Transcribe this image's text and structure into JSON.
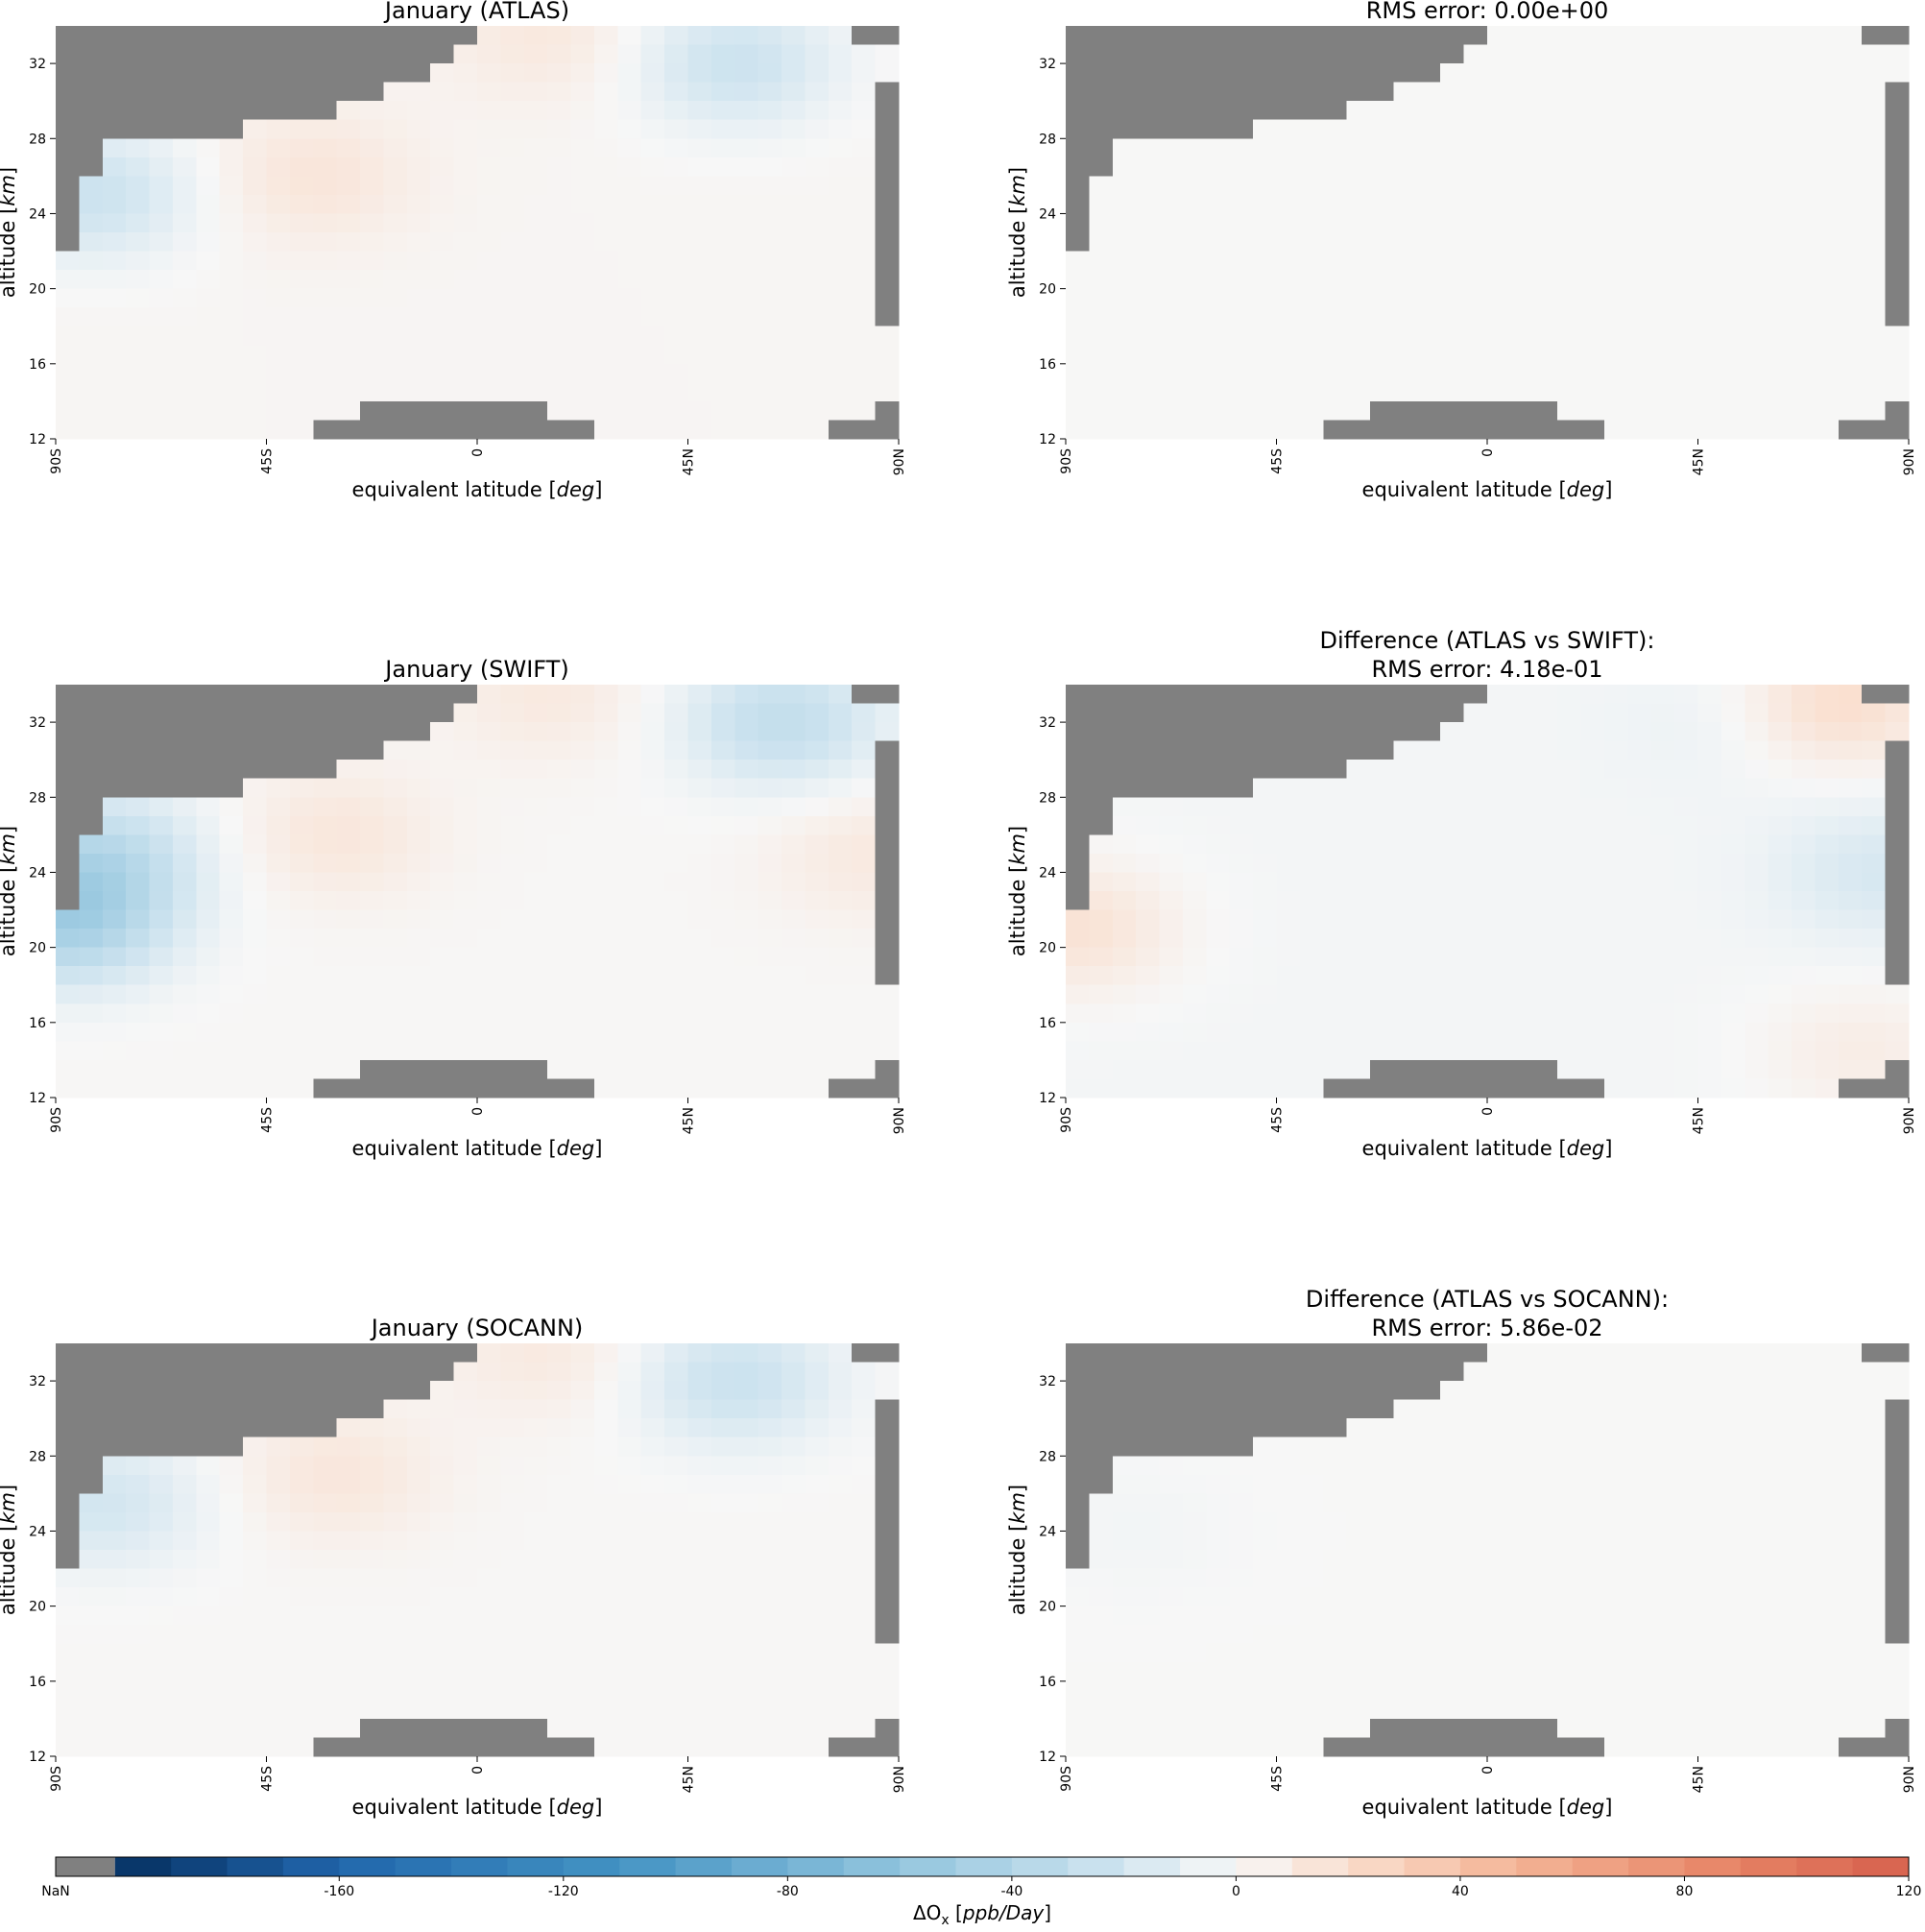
{
  "figure": {
    "panels": [
      {
        "title_lines": [
          "January (ATLAS)"
        ],
        "field": "atlas"
      },
      {
        "title_lines": [
          "RMS error: 0.00e+00"
        ],
        "field": "diff_zero"
      },
      {
        "title_lines": [
          "January (SWIFT)"
        ],
        "field": "swift"
      },
      {
        "title_lines": [
          "Difference (ATLAS vs SWIFT):",
          "RMS error: 4.18e-01"
        ],
        "field": "diff_swift"
      },
      {
        "title_lines": [
          "January (SOCANN)"
        ],
        "field": "socann"
      },
      {
        "title_lines": [
          "Difference (ATLAS vs SOCANN):",
          "RMS error: 5.86e-02"
        ],
        "field": "diff_socann"
      }
    ],
    "xlabel_prefix": "equivalent latitude ",
    "xlabel_unit": "deg",
    "ylabel_prefix": "altitude ",
    "ylabel_unit": "km",
    "x_ticks": [
      "90S",
      "45S",
      "0",
      "45N",
      "90N"
    ],
    "y_ticks": [
      "12",
      "16",
      "20",
      "24",
      "28",
      "32"
    ],
    "colorbar": {
      "label": "ΔO",
      "label_sub": "x",
      "label_unit": "ppb/Day",
      "ticks": [
        "NaN",
        "-160",
        "-120",
        "-80",
        "-40",
        "0",
        "40",
        "80",
        "120"
      ],
      "nan_color": "#808080",
      "colormap": "RdBu_r"
    }
  },
  "chart_data": {
    "type": "heatmap",
    "x_range": [
      -90,
      90
    ],
    "y_range": [
      12,
      34
    ],
    "x_unit": "deg",
    "y_unit": "km",
    "x_tick_values": [
      -90,
      -45,
      0,
      45,
      90
    ],
    "y_tick_values": [
      12,
      16,
      20,
      24,
      28,
      32
    ],
    "colorbar_range": [
      -200,
      120
    ],
    "colorbar_tick_values": [
      -160,
      -120,
      -80,
      -40,
      0,
      40,
      80,
      120
    ],
    "nan_color": "#808080",
    "fields": {
      "atlas": {
        "note_values": "dOx in ppb/Day; approximate reading of colored grid",
        "features": [
          {
            "lat": -82,
            "alt": 25,
            "value": -25
          },
          {
            "lat": -35,
            "alt": 26,
            "value": 12
          },
          {
            "lat": 55,
            "alt": 32,
            "value": -25
          },
          {
            "lat": 15,
            "alt": 33.5,
            "value": 10
          }
        ],
        "background": 2
      },
      "diff_zero": {
        "features": [],
        "background": 0.3
      },
      "swift": {
        "features": [
          {
            "lat": -88,
            "alt": 21.5,
            "value": -45
          },
          {
            "lat": -80,
            "alt": 25,
            "value": -28
          },
          {
            "lat": -30,
            "alt": 26,
            "value": 12
          },
          {
            "lat": 65,
            "alt": 32,
            "value": -30
          },
          {
            "lat": 84,
            "alt": 25,
            "value": 10
          },
          {
            "lat": 15,
            "alt": 33.5,
            "value": 10
          }
        ],
        "background": 1
      },
      "diff_swift": {
        "features": [
          {
            "lat": -88,
            "alt": 21,
            "value": 18
          },
          {
            "lat": 75,
            "alt": 33,
            "value": 22
          },
          {
            "lat": 84,
            "alt": 24,
            "value": -15
          },
          {
            "lat": 80,
            "alt": 14.5,
            "value": 10
          },
          {
            "lat": 50,
            "alt": 32,
            "value": -5
          }
        ],
        "background": -2
      },
      "socann": {
        "features": [
          {
            "lat": -80,
            "alt": 25.5,
            "value": -20
          },
          {
            "lat": -30,
            "alt": 27,
            "value": 12
          },
          {
            "lat": 55,
            "alt": 32,
            "value": -25
          },
          {
            "lat": 15,
            "alt": 33.5,
            "value": 10
          }
        ],
        "background": 1
      },
      "diff_socann": {
        "features": [
          {
            "lat": -75,
            "alt": 24,
            "value": -3
          }
        ],
        "background": 0.3
      }
    }
  }
}
